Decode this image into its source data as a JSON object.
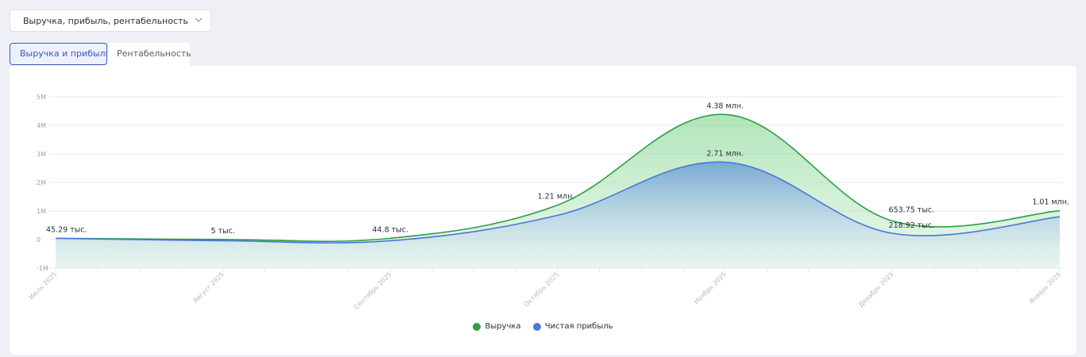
{
  "selector": {
    "value": "Выручка, прибыль, рентабельность",
    "icon": "chevron-down-icon"
  },
  "tabs": {
    "active": "Выручка и прибыль",
    "inactive": "Рентабельность"
  },
  "colors": {
    "revenue": "#2e9e45",
    "profit": "#4a78d8",
    "accent": "#3b57c4"
  },
  "chart_data": {
    "type": "area",
    "x": [
      "Июль 2025",
      "Август 2025",
      "Сентябрь 2025",
      "Октябрь 2025",
      "Ноябрь 2025",
      "Декабрь 2025",
      "Январь 2026"
    ],
    "series": [
      {
        "name": "Выручка",
        "values": [
          45290,
          5000,
          44800,
          1210000,
          4380000,
          653750,
          1010000
        ],
        "labels": [
          "45.29 тыс.",
          "5 тыс.",
          "44.8 тыс.",
          "1.21 млн.",
          "4.38 млн.",
          "653.75 тыс.",
          "1.01 млн."
        ]
      },
      {
        "name": "Чистая прибыль",
        "values": [
          45290,
          -40000,
          -40000,
          850000,
          2710000,
          218920,
          800000
        ],
        "labels": [
          "",
          "",
          "",
          "",
          "2.71 млн.",
          "218.92 тыс.",
          ""
        ]
      }
    ],
    "y_ticks": [
      "5M",
      "4M",
      "3M",
      "2M",
      "1M",
      "0",
      "-1M"
    ],
    "ylim": [
      -1000000,
      5000000
    ],
    "grid": true,
    "legend_position": "bottom-center"
  }
}
